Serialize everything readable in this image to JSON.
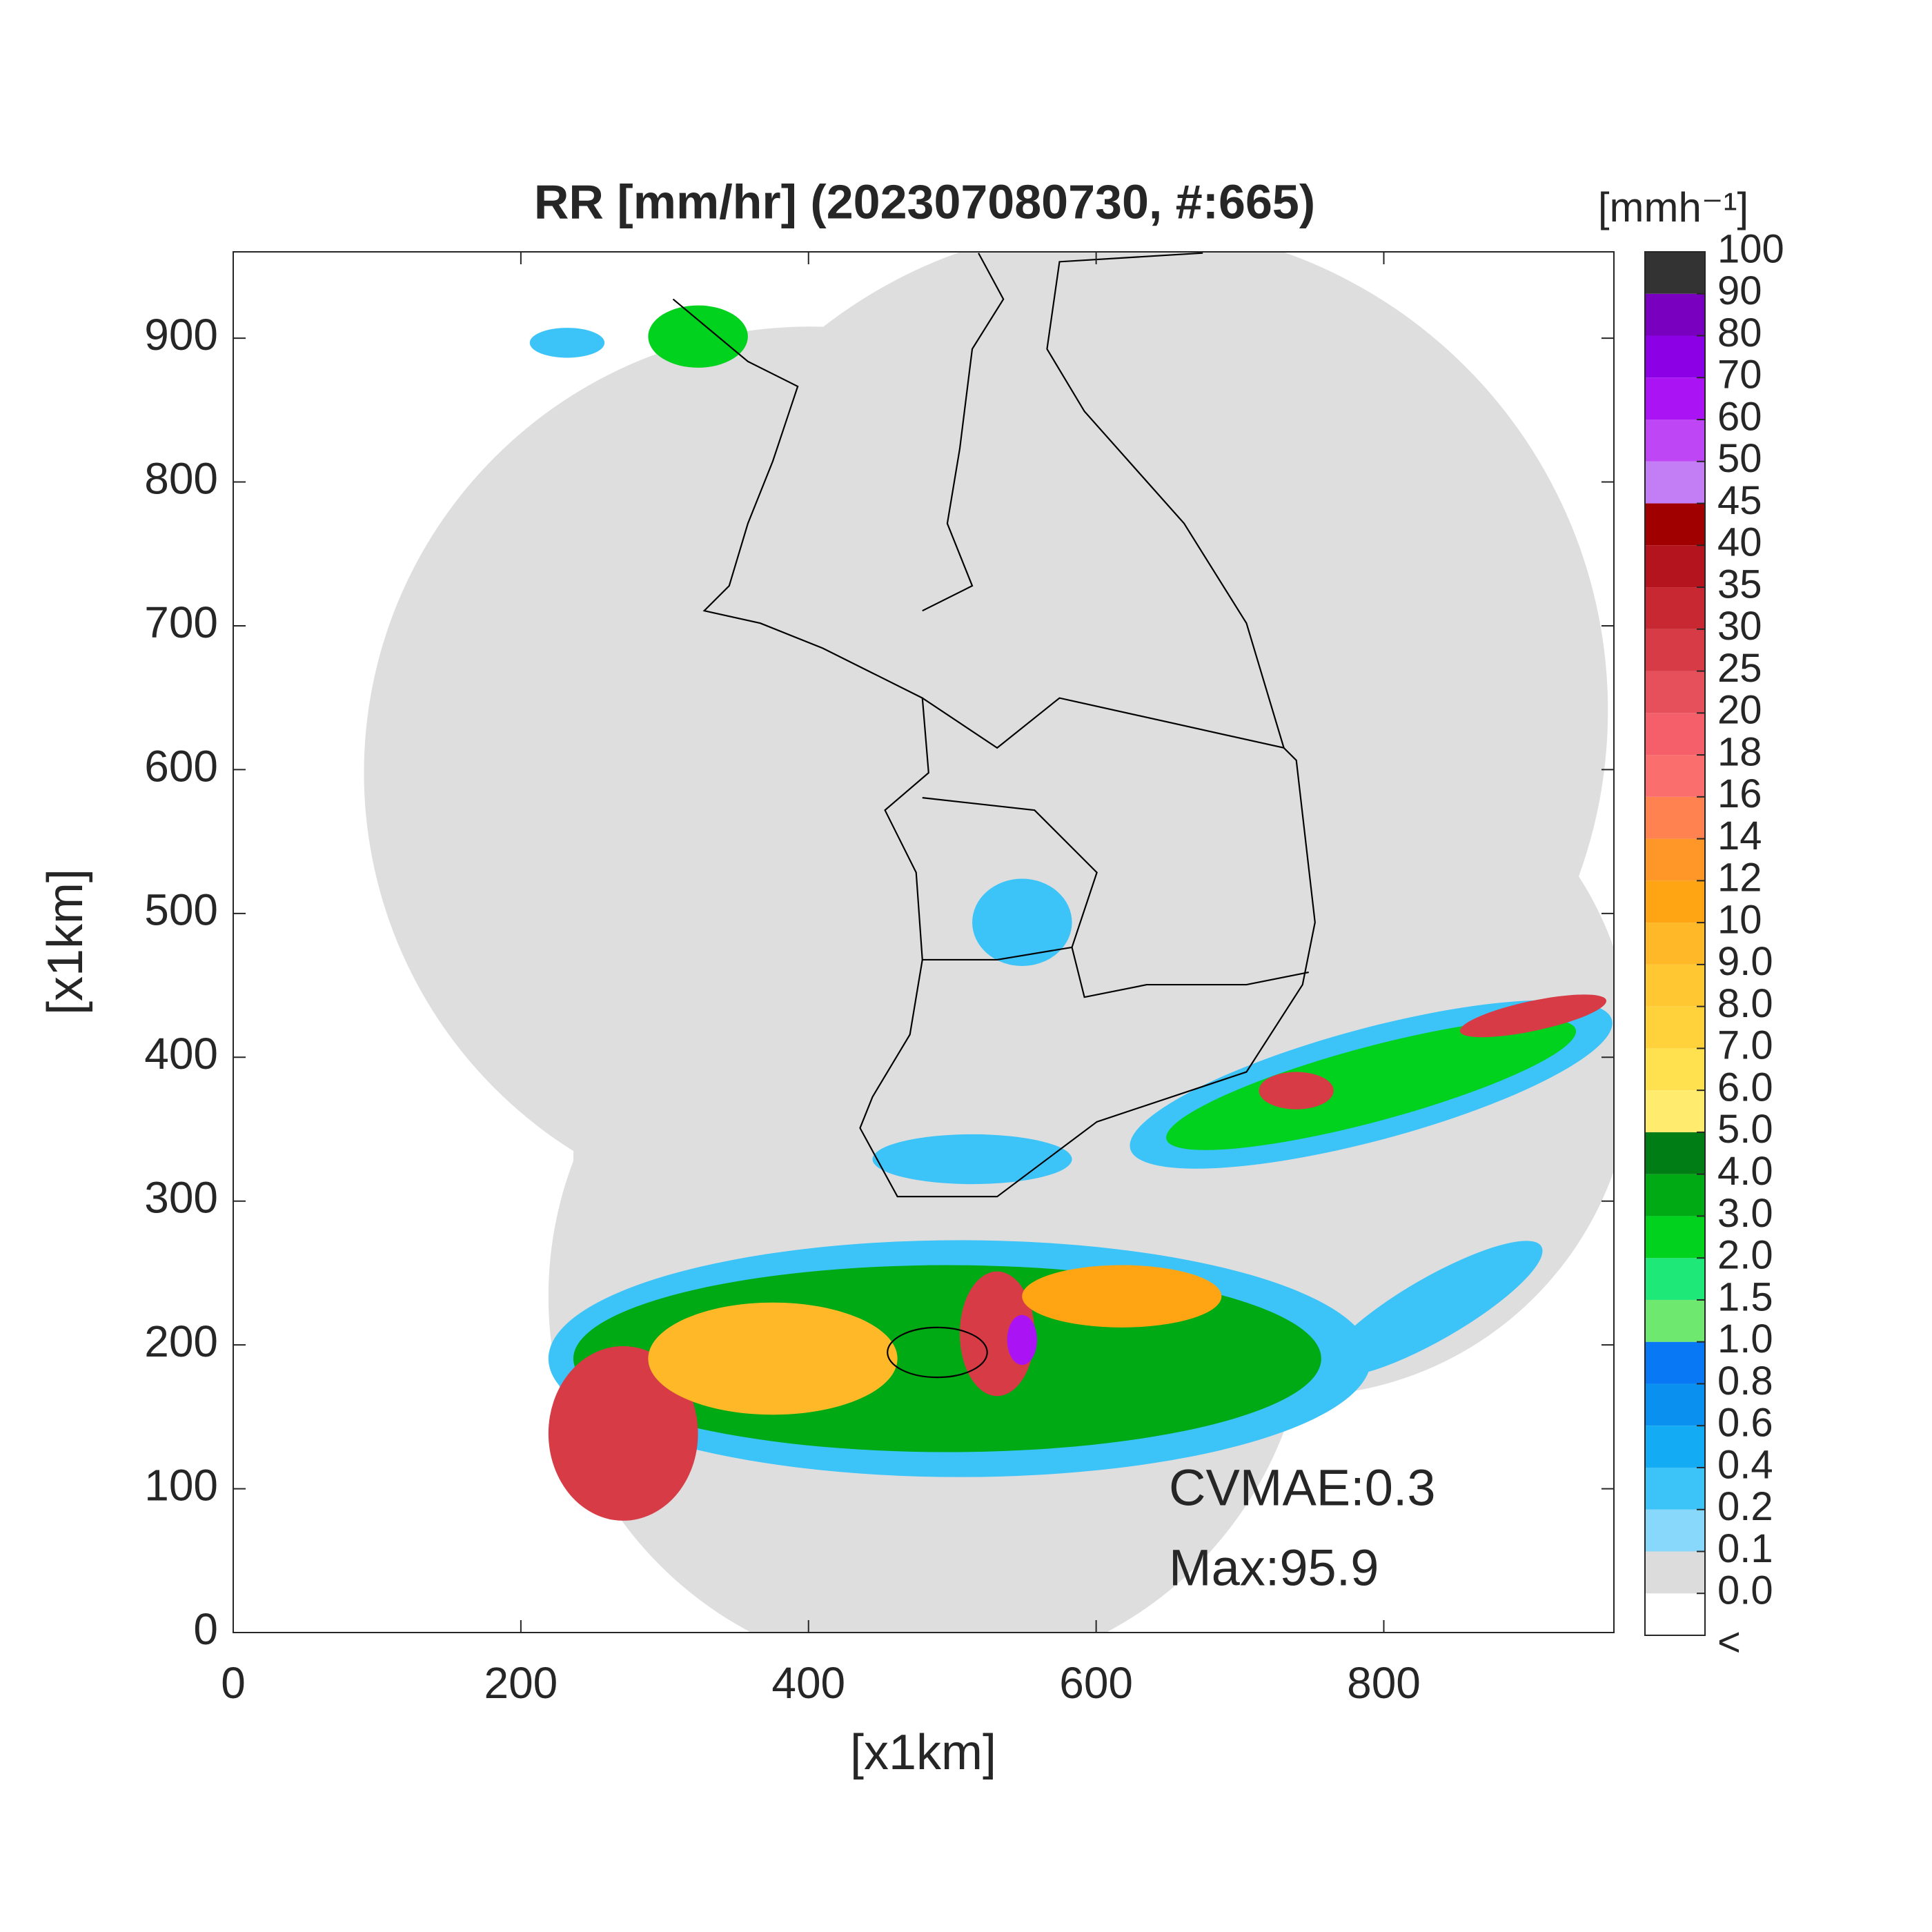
{
  "chart_data": {
    "type": "map",
    "title": "RR [mm/hr] (202307080730, #:665)",
    "xlabel": "[x1km]",
    "ylabel": "[x1km]",
    "xlim": [
      0,
      960
    ],
    "ylim": [
      0,
      960
    ],
    "xticks": [
      0,
      200,
      400,
      600,
      800
    ],
    "yticks": [
      0,
      100,
      200,
      300,
      400,
      500,
      600,
      700,
      800,
      900
    ],
    "annotations": [
      "CVMAE:0.3",
      "Max:95.9"
    ],
    "colorbar": {
      "label": "[mmh⁻¹]",
      "under_label": "<",
      "under_color": "#ffffff",
      "ticks": [
        {
          "value": 0,
          "label": "0.0"
        },
        0.1,
        0.2,
        0.4,
        0.6,
        0.8,
        {
          "value": 1,
          "label": "1.0"
        },
        1.5,
        {
          "value": 2,
          "label": "2.0"
        },
        {
          "value": 3,
          "label": "3.0"
        },
        {
          "value": 4,
          "label": "4.0"
        },
        {
          "value": 5,
          "label": "5.0"
        },
        {
          "value": 6,
          "label": "6.0"
        },
        {
          "value": 7,
          "label": "7.0"
        },
        {
          "value": 8,
          "label": "8.0"
        },
        {
          "value": 9,
          "label": "9.0"
        },
        10,
        12,
        14,
        16,
        18,
        20,
        25,
        30,
        35,
        40,
        45,
        50,
        60,
        70,
        80,
        90,
        100
      ],
      "colors": [
        "#dcdcdc",
        "#87d8fa",
        "#3cc3f8",
        "#14abf5",
        "#0a91f0",
        "#0878f5",
        "#6ee86e",
        "#1ee878",
        "#00d21e",
        "#00aa14",
        "#007d14",
        "#ffeb6e",
        "#ffe150",
        "#ffd23c",
        "#ffc832",
        "#ffb928",
        "#ffa514",
        "#ff9628",
        "#ff8250",
        "#fa6e6e",
        "#f55f69",
        "#e6505a",
        "#d73c46",
        "#c82832",
        "#b4141e",
        "#a00000",
        "#c47ef5",
        "#be46f5",
        "#aa14f5",
        "#8c00e6",
        "#7800be",
        "#333333"
      ]
    }
  }
}
